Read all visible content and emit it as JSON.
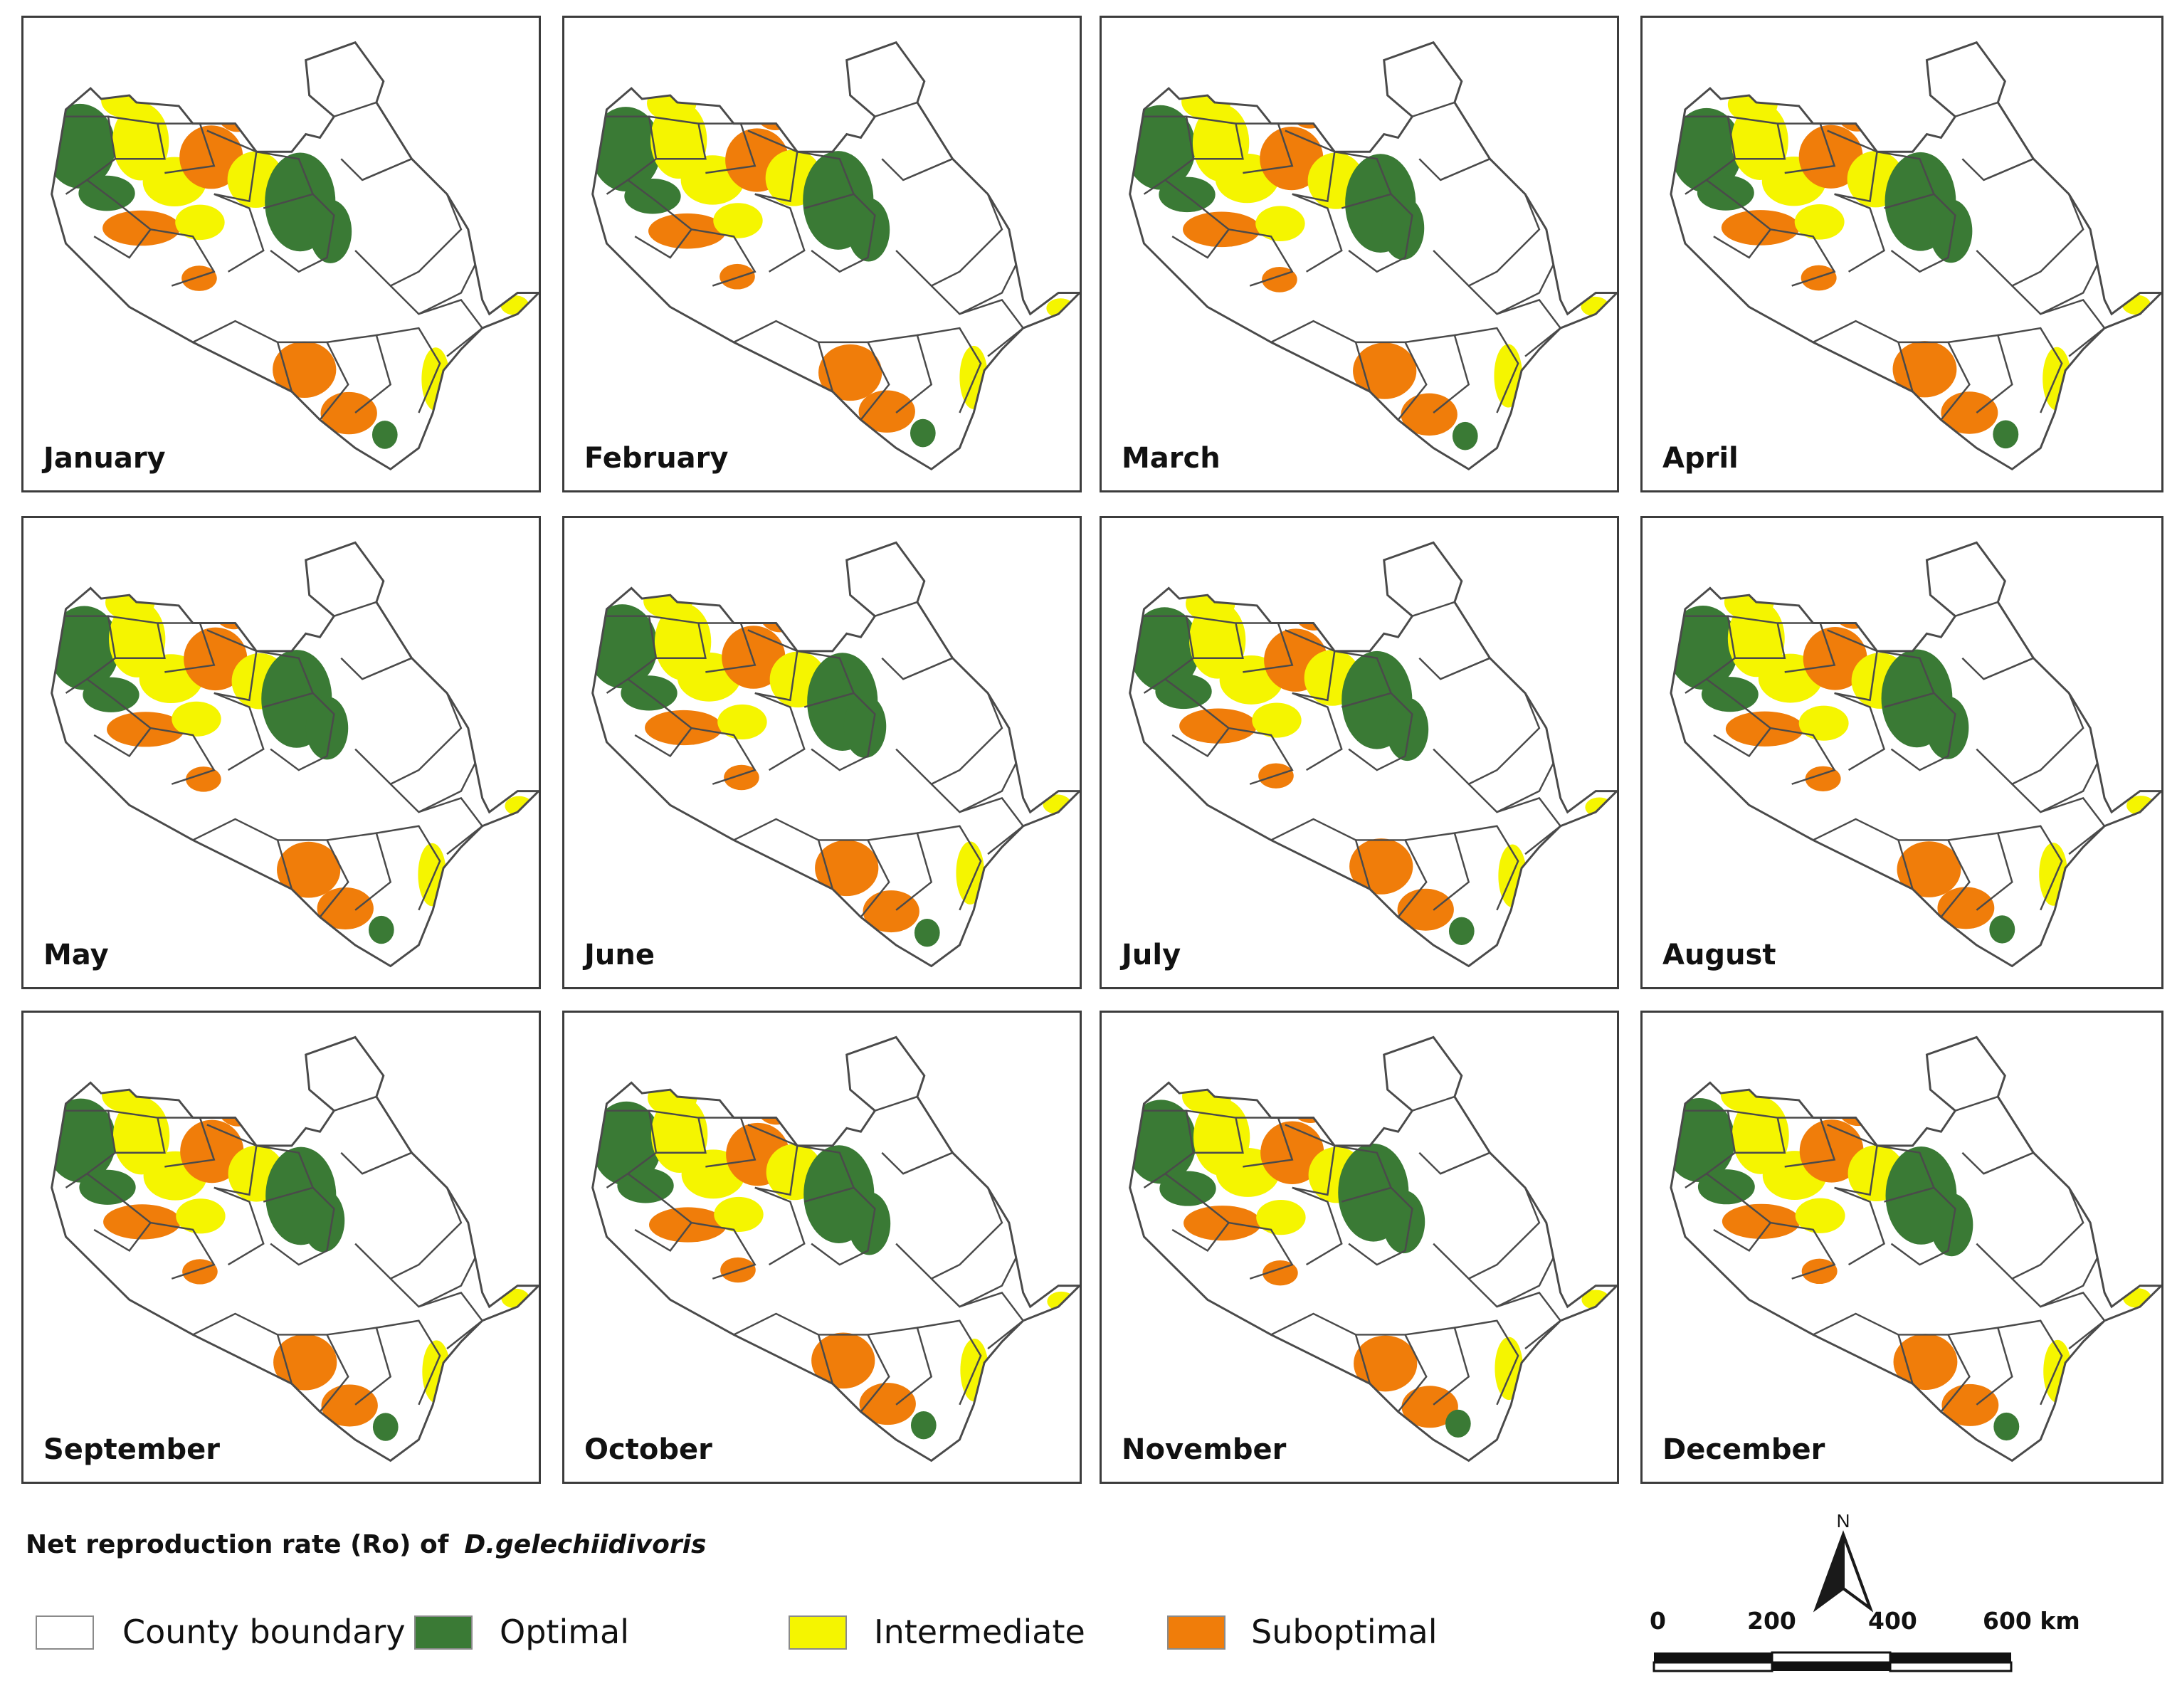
{
  "legend": {
    "title": "Net reproduction rate (Ro) of",
    "species": "D.gelechiidivoris",
    "items": [
      {
        "label": "County boundary",
        "color": "#ffffff"
      },
      {
        "label": "Optimal",
        "color": "#3a7a35"
      },
      {
        "label": "Intermediate",
        "color": "#f5f500"
      },
      {
        "label": "Suboptimal",
        "color": "#f07d0a"
      }
    ]
  },
  "months": [
    {
      "label": "January"
    },
    {
      "label": "February"
    },
    {
      "label": "March"
    },
    {
      "label": "April"
    },
    {
      "label": "May"
    },
    {
      "label": "June"
    },
    {
      "label": "July"
    },
    {
      "label": "August"
    },
    {
      "label": "September"
    },
    {
      "label": "October"
    },
    {
      "label": "November"
    },
    {
      "label": "December"
    }
  ],
  "scale_bar": {
    "ticks": [
      "0",
      "200",
      "400",
      "600 km"
    ]
  },
  "north_arrow": {
    "label": "N",
    "icon": "north-arrow-icon"
  },
  "colors": {
    "boundary": "#4a4a4a",
    "optimal": "#3a7a35",
    "intermediate": "#f5f500",
    "suboptimal": "#f07d0a"
  }
}
